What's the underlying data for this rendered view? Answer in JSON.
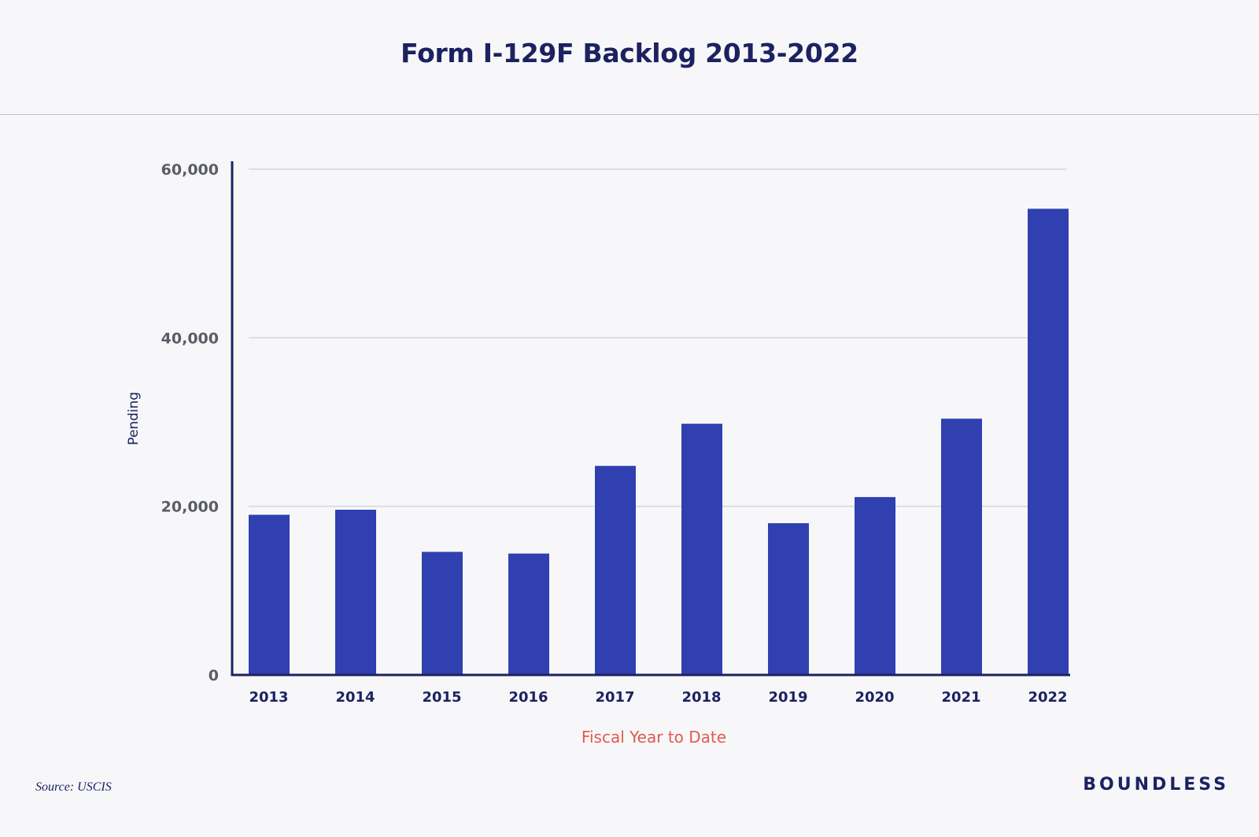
{
  "source_text": "Source: USCIS",
  "brand": "BOUNDLESS",
  "colors": {
    "bar": "#3040b0",
    "axis": "#1c2260",
    "grid": "#d4d6de",
    "xlabel": "#e25a4c"
  },
  "chart_data": {
    "type": "bar",
    "title": "Form I-129F Backlog 2013-2022",
    "xlabel": "Fiscal Year to Date",
    "ylabel": "Pending",
    "categories": [
      "2013",
      "2014",
      "2015",
      "2016",
      "2017",
      "2018",
      "2019",
      "2020",
      "2021",
      "2022"
    ],
    "values": [
      19000,
      19600,
      14600,
      14400,
      24800,
      29800,
      18000,
      21100,
      30400,
      55300
    ],
    "ylim": [
      0,
      60000
    ],
    "yticks": [
      {
        "value": 0,
        "label": "0"
      },
      {
        "value": 20000,
        "label": "20,000"
      },
      {
        "value": 40000,
        "label": "40,000"
      },
      {
        "value": 60000,
        "label": "60,000"
      }
    ],
    "grid": true,
    "legend": "none"
  }
}
